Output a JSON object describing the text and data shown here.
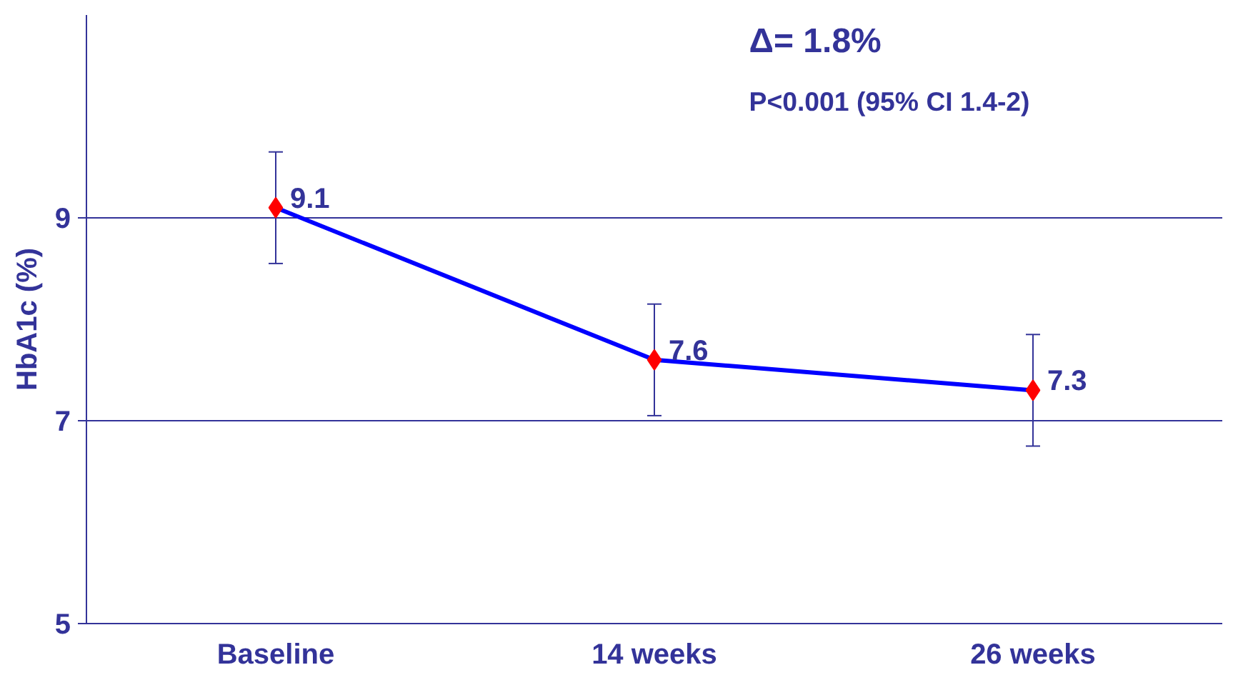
{
  "chart_data": {
    "type": "line",
    "ylabel": "HbA1c (%)",
    "categories": [
      "Baseline",
      "14 weeks",
      "26 weeks"
    ],
    "series": [
      {
        "color": "#0000ff",
        "values": [
          9.1,
          7.6,
          7.3
        ],
        "errors": [
          0.55,
          0.55,
          0.55
        ],
        "colors": [
          "#ff0000",
          "#ff0000",
          "#ff0000"
        ]
      }
    ],
    "ylim": [
      5,
      11
    ],
    "yticks": [
      5,
      7,
      9
    ],
    "grid": "y",
    "marker": "diamond",
    "data_labels": true,
    "annotations": [
      "Δ= 1.8%",
      "P<0.001 (95% CI 1.4-2)"
    ]
  }
}
